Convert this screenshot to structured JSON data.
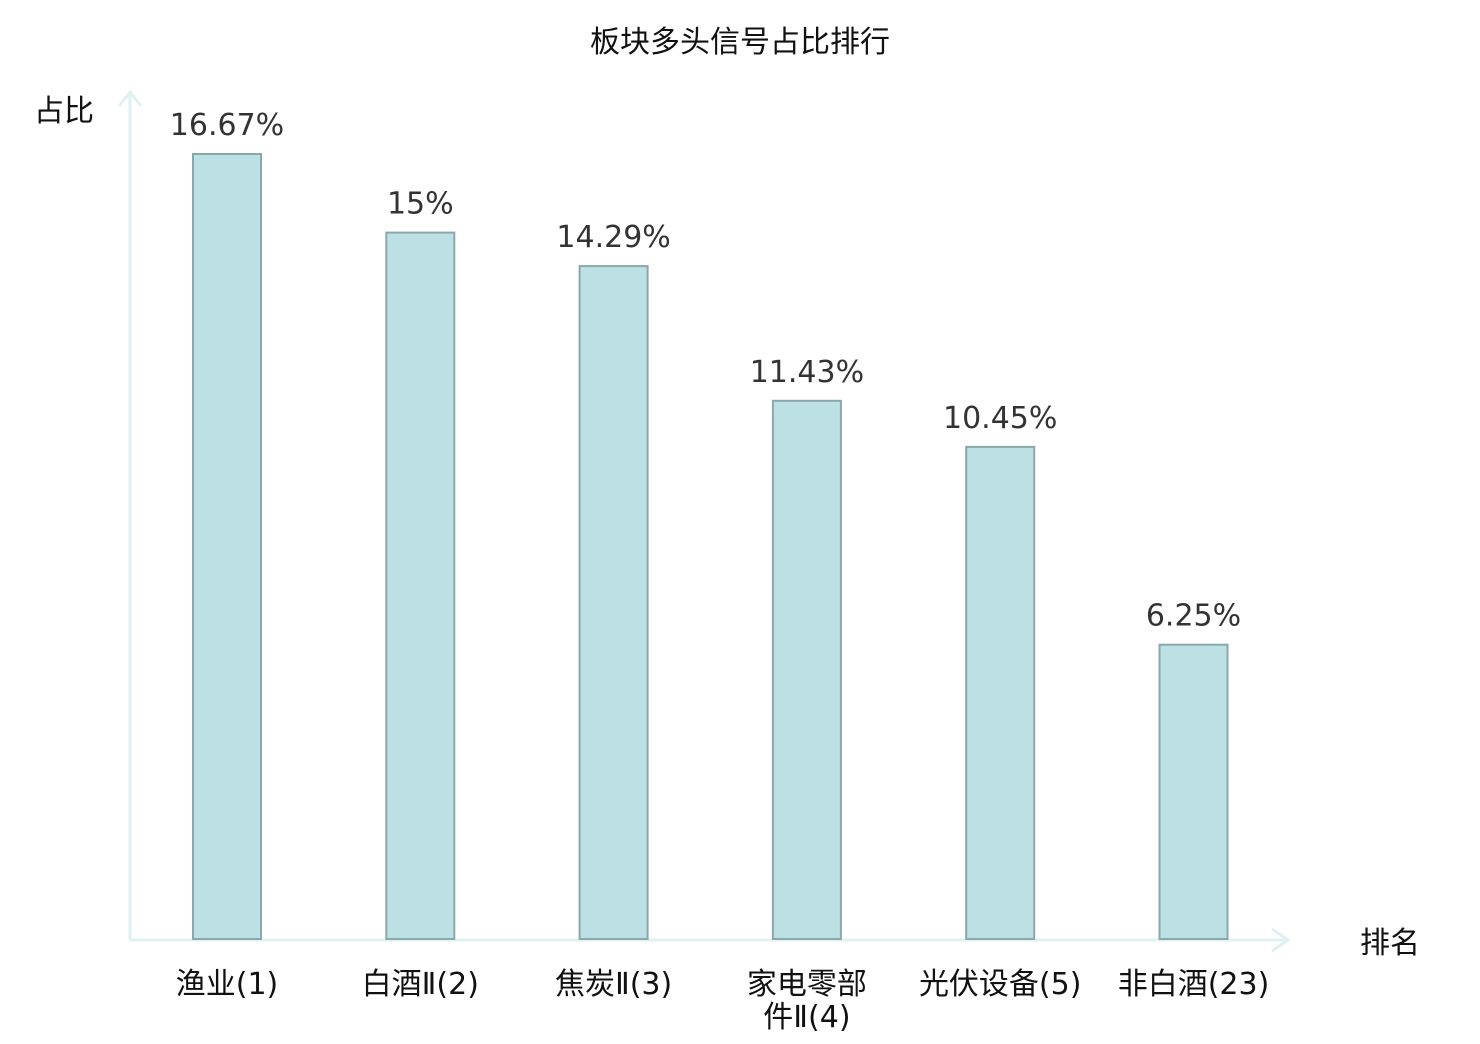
{
  "chart_data": {
    "type": "bar",
    "title": "板块多头信号占比排行",
    "xlabel": "排名",
    "ylabel": "占比",
    "categories": [
      [
        "渔业(1)"
      ],
      [
        "白酒Ⅱ(2)"
      ],
      [
        "焦炭Ⅱ(3)"
      ],
      [
        "家电零部",
        "件Ⅱ(4)"
      ],
      [
        "光伏设备(5)"
      ],
      [
        "非白酒(23)"
      ]
    ],
    "values": [
      16.67,
      15,
      14.29,
      11.43,
      10.45,
      6.25
    ],
    "value_labels": [
      "16.67%",
      "15%",
      "14.29%",
      "11.43%",
      "10.45%",
      "6.25%"
    ],
    "highlight_index": 5,
    "ylim": [
      0,
      16.67
    ],
    "grid": false,
    "colors": {
      "bar_fill": "#bce0e3",
      "bar_stroke": "#8aa8ab",
      "axis": "#dff2f1",
      "highlight_text": "#e02020",
      "text": "#111111",
      "value_text": "#333333"
    }
  }
}
